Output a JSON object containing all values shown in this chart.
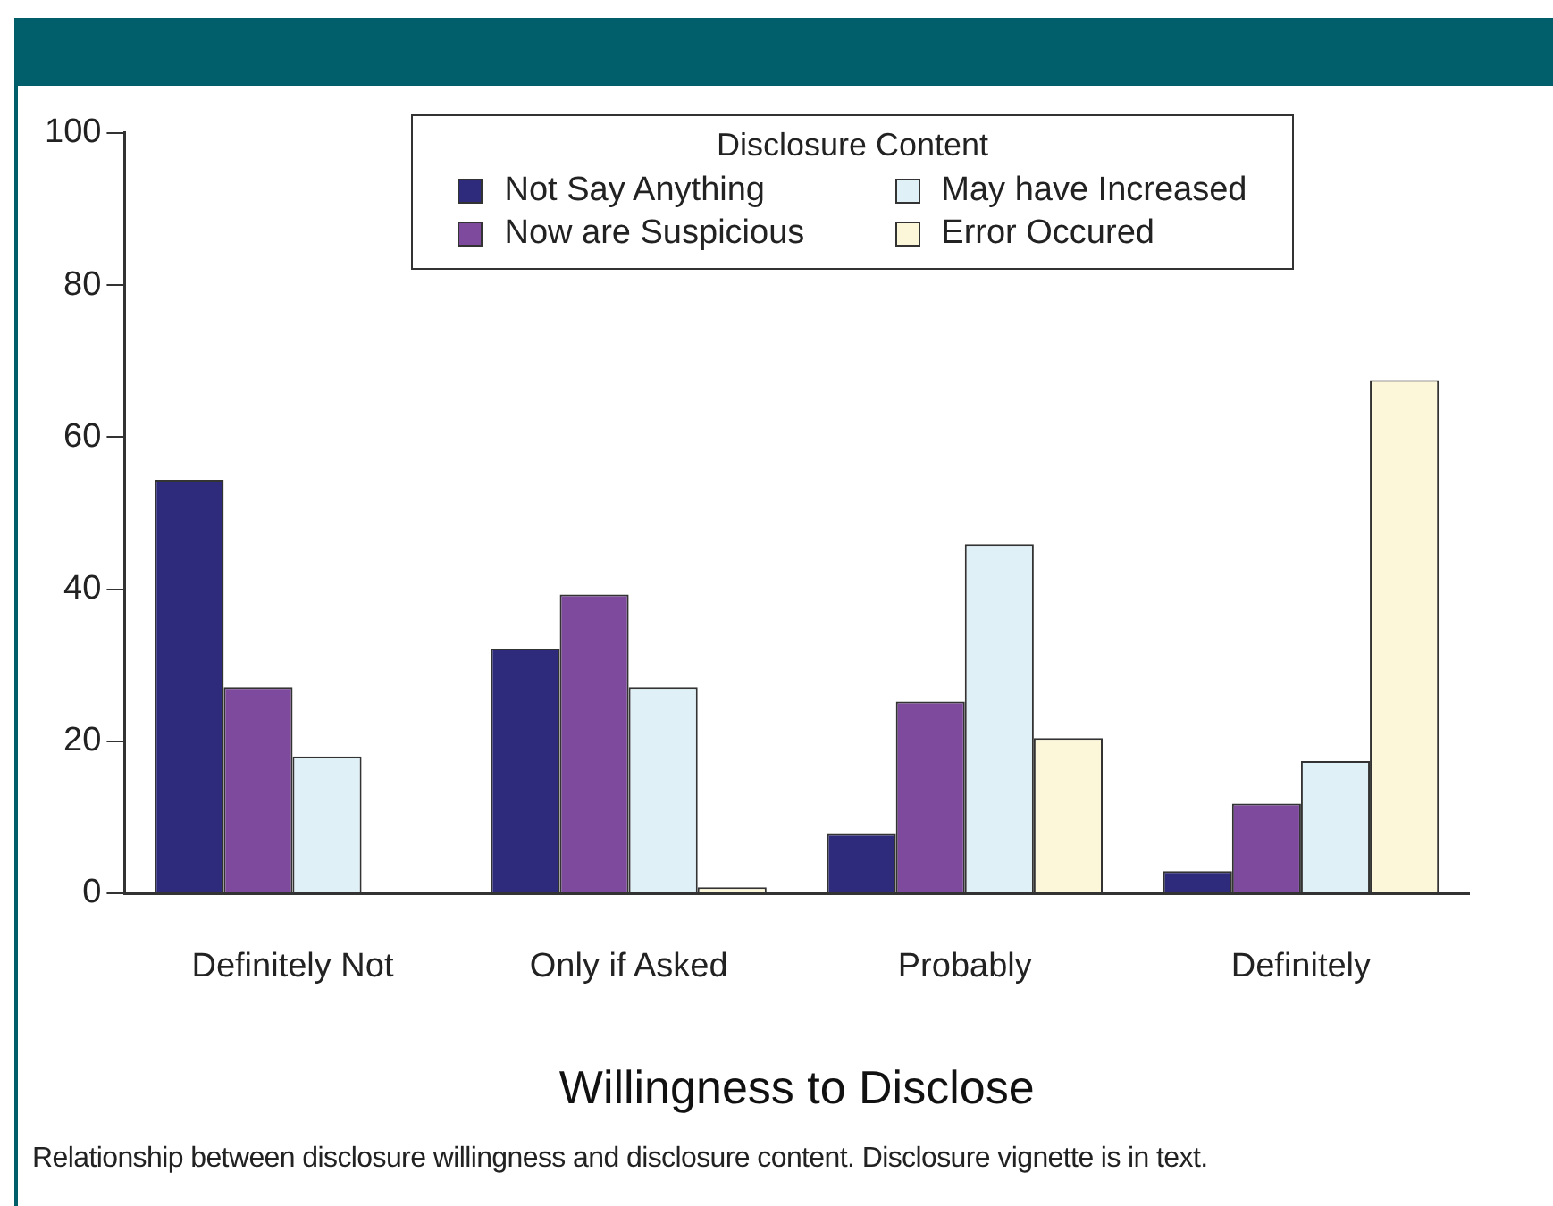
{
  "chart_data": {
    "type": "bar",
    "xlabel": "Willingness to Disclose",
    "legend_title": "Disclosure Content",
    "categories": [
      "Definitely Not",
      "Only if Asked",
      "Probably",
      "Definitely"
    ],
    "series": [
      {
        "name": "Not Say Anything",
        "color": "#2e2a7c",
        "values": [
          54.4,
          32.2,
          7.8,
          2.9
        ]
      },
      {
        "name": "Now are Suspicious",
        "color": "#7d4a9e",
        "values": [
          27.1,
          39.3,
          25.2,
          11.8
        ]
      },
      {
        "name": "May have Increased",
        "color": "#dff0f7",
        "values": [
          18.0,
          27.1,
          45.9,
          17.4
        ]
      },
      {
        "name": "Error Occured",
        "color": "#fdf7da",
        "values": [
          0,
          0.8,
          20.4,
          67.5
        ]
      }
    ],
    "ylim": [
      0,
      100
    ],
    "yticks": [
      0,
      20,
      40,
      60,
      80,
      100
    ],
    "grid": false,
    "legend": "top",
    "annotations": [
      "Relationship between disclosure willingness and disclosure content. Disclosure vignette is in text."
    ]
  }
}
